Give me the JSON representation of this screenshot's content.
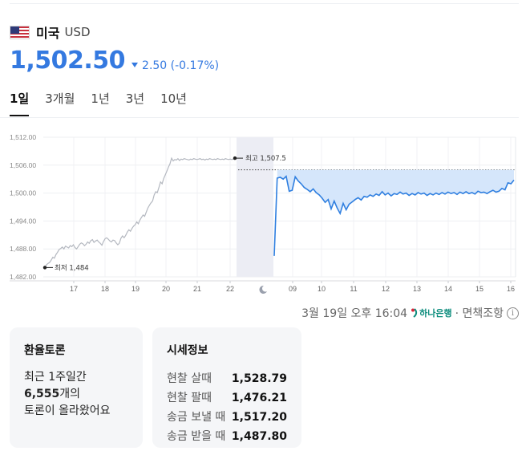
{
  "header": {
    "country": "미국",
    "currency": "USD",
    "price": "1,502.50",
    "change": "2.50 (-0.17%)",
    "change_direction": "down"
  },
  "tabs": [
    {
      "label": "1일",
      "active": true
    },
    {
      "label": "3개월",
      "active": false
    },
    {
      "label": "1년",
      "active": false
    },
    {
      "label": "3년",
      "active": false
    },
    {
      "label": "10년",
      "active": false
    }
  ],
  "chart_data": {
    "type": "line",
    "y_ticks": [
      "1,512.00",
      "1,506.00",
      "1,500.00",
      "1,494.00",
      "1,488.00",
      "1,482.00"
    ],
    "ylim": [
      1482,
      1512
    ],
    "x_ticks": [
      "17",
      "18",
      "19",
      "20",
      "21",
      "22",
      "09",
      "10",
      "11",
      "12",
      "13",
      "14",
      "15",
      "16"
    ],
    "annotations": {
      "high_label": "최고 1,507.5",
      "high_value": 1507.5,
      "low_label": "최저 1,484",
      "low_value": 1484
    },
    "reference_value": 1505,
    "series": [
      {
        "color": "#b4b8c0",
        "x": [
          0,
          2,
          4,
          6,
          8,
          10,
          12,
          14,
          16,
          18,
          20,
          22,
          24,
          26,
          28,
          30,
          32,
          34,
          36,
          38,
          40,
          42,
          44,
          46,
          48,
          50,
          52,
          54,
          56,
          58,
          60,
          62,
          64,
          66,
          68,
          70,
          72,
          74,
          76,
          78,
          80,
          82,
          84,
          86,
          88,
          90,
          92,
          94,
          96,
          98,
          100,
          102,
          104,
          106,
          108,
          110,
          112,
          114,
          116,
          118,
          120,
          122,
          124,
          126,
          128,
          130,
          132,
          134,
          136,
          138,
          140,
          142,
          144,
          146,
          148,
          150,
          152,
          154,
          156,
          158,
          160,
          162,
          164,
          166,
          168,
          170,
          172,
          174,
          176,
          178,
          180,
          182,
          184,
          186,
          188,
          190,
          192,
          194,
          196,
          198,
          200,
          202,
          204,
          206,
          208,
          210,
          212,
          214,
          216,
          218,
          220,
          222,
          224,
          226,
          228,
          230,
          232,
          234,
          236,
          238,
          240
        ],
        "y": [
          1484.0,
          1484.6,
          1484.9,
          1485.1,
          1485.6,
          1486.2,
          1486.0,
          1486.8,
          1487.3,
          1487.9,
          1488.1,
          1488.4,
          1488.0,
          1488.6,
          1488.4,
          1488.2,
          1488.7,
          1488.5,
          1488.9,
          1488.3,
          1488.0,
          1488.5,
          1489.0,
          1489.3,
          1489.1,
          1488.7,
          1489.0,
          1489.5,
          1489.2,
          1489.8,
          1490.0,
          1489.4,
          1489.7,
          1489.9,
          1489.5,
          1489.2,
          1488.8,
          1489.6,
          1490.2,
          1490.4,
          1490.1,
          1489.7,
          1489.5,
          1489.9,
          1489.8,
          1489.3,
          1488.9,
          1489.2,
          1490.3,
          1490.8,
          1490.4,
          1490.9,
          1491.6,
          1492.1,
          1491.8,
          1492.4,
          1492.9,
          1493.2,
          1493.8,
          1493.4,
          1494.2,
          1494.8,
          1495.3,
          1495.0,
          1495.9,
          1496.8,
          1497.4,
          1497.9,
          1498.3,
          1499.6,
          1500.3,
          1500.1,
          1501.2,
          1502.4,
          1502.0,
          1503.1,
          1503.9,
          1504.7,
          1505.6,
          1506.3,
          1507.5,
          1506.9,
          1507.2,
          1507.1,
          1507.4,
          1507.0,
          1507.3,
          1507.2,
          1507.4,
          1507.3,
          1507.2,
          1507.1,
          1507.3,
          1507.2,
          1507.4,
          1507.3,
          1507.2,
          1507.3,
          1507.4,
          1507.2,
          1507.3,
          1507.1,
          1507.3,
          1507.2,
          1507.4,
          1507.3,
          1507.2,
          1507.3,
          1507.2,
          1507.4,
          1507.3,
          1507.2,
          1507.3,
          1507.2,
          1507.4,
          1507.3,
          1507.2,
          1507.3,
          1507.2,
          1507.3,
          1507.2
        ]
      },
      {
        "color": "#2f7fe0",
        "x": [
          0,
          1,
          2,
          3,
          4,
          5,
          6,
          7,
          8,
          9,
          10,
          11,
          12,
          13,
          14,
          15,
          16,
          17,
          18,
          19,
          20,
          21,
          22,
          23,
          24,
          25,
          26,
          27,
          28,
          29,
          30,
          31,
          32,
          33,
          34,
          35,
          36,
          37,
          38,
          39,
          40,
          41,
          42,
          43,
          44,
          45,
          46,
          47,
          48,
          49,
          50,
          51,
          52,
          53,
          54,
          55,
          56,
          57,
          58,
          59,
          60,
          61,
          62,
          63,
          64,
          65,
          66,
          67,
          68,
          69,
          70,
          71,
          72,
          73,
          74,
          75,
          76,
          77,
          78,
          79,
          80
        ],
        "y": [
          1486.5,
          1503.2,
          1503.4,
          1503.0,
          1503.6,
          1500.4,
          1500.6,
          1503.5,
          1502.6,
          1502.0,
          1501.2,
          1500.8,
          1500.3,
          1500.9,
          1500.1,
          1499.6,
          1498.9,
          1498.0,
          1498.6,
          1496.6,
          1498.3,
          1496.8,
          1495.6,
          1497.8,
          1496.4,
          1497.6,
          1498.1,
          1498.6,
          1499.0,
          1498.5,
          1499.3,
          1499.1,
          1499.6,
          1499.3,
          1499.8,
          1499.5,
          1500.3,
          1499.6,
          1500.0,
          1499.4,
          1499.9,
          1499.7,
          1500.2,
          1499.8,
          1500.0,
          1499.5,
          1499.9,
          1499.6,
          1500.1,
          1499.8,
          1500.0,
          1499.5,
          1499.9,
          1499.6,
          1500.0,
          1499.7,
          1500.1,
          1499.8,
          1500.2,
          1499.9,
          1500.1,
          1499.7,
          1500.2,
          1499.9,
          1500.3,
          1499.9,
          1500.1,
          1499.8,
          1500.4,
          1500.1,
          1500.2,
          1499.9,
          1500.3,
          1500.6,
          1500.2,
          1500.4,
          1501.0,
          1500.7,
          1502.2,
          1502.0,
          1502.8
        ]
      }
    ]
  },
  "update": {
    "timestamp": "3월 19일 오후 16:04",
    "bank": "하나은행",
    "disclaimer": "· 면책조항"
  },
  "discussion": {
    "title": "환율토론",
    "line1": "최근 1주일간",
    "count": "6,555",
    "count_suffix": "개의",
    "line3": "토론이 올라왔어요"
  },
  "quotes": {
    "title": "시세정보",
    "rows": [
      {
        "label": "현찰 살때",
        "value": "1,528.79"
      },
      {
        "label": "현찰 팔때",
        "value": "1,476.21"
      },
      {
        "label": "송금 보낼 때",
        "value": "1,517.20"
      },
      {
        "label": "송금 받을 때",
        "value": "1,487.80"
      }
    ]
  }
}
